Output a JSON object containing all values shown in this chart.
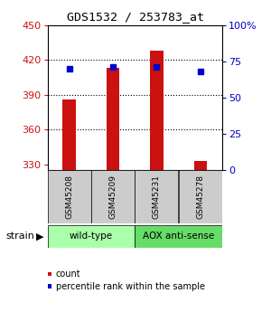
{
  "title": "GDS1532 / 253783_at",
  "samples": [
    "GSM45208",
    "GSM45209",
    "GSM45231",
    "GSM45278"
  ],
  "counts": [
    386,
    413,
    428,
    333
  ],
  "percentiles": [
    70,
    71,
    71,
    68
  ],
  "ylim_left": [
    325,
    450
  ],
  "yticks_left": [
    330,
    360,
    390,
    420,
    450
  ],
  "ylim_right": [
    0,
    100
  ],
  "yticks_right": [
    0,
    25,
    50,
    75,
    100
  ],
  "groups": [
    {
      "label": "wild-type",
      "indices": [
        0,
        1
      ],
      "color": "#aaffaa"
    },
    {
      "label": "AOX anti-sense",
      "indices": [
        2,
        3
      ],
      "color": "#66dd66"
    }
  ],
  "bar_color": "#cc1111",
  "dot_color": "#0000cc",
  "bar_width": 0.3,
  "strain_label": "strain",
  "legend_count_label": "count",
  "legend_pct_label": "percentile rank within the sample",
  "background_color": "#ffffff",
  "plot_bg": "#ffffff",
  "tick_label_color_left": "#cc1111",
  "tick_label_color_right": "#0000cc",
  "grid_color": "#000000",
  "sample_box_color": "#cccccc",
  "gridline_vals": [
    360,
    390,
    420
  ]
}
